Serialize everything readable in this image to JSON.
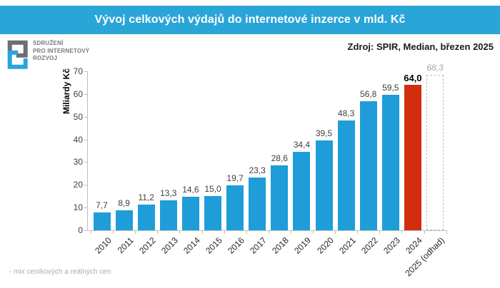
{
  "header": {
    "title": "Vývoj celkových výdajů do internetové inzerce v mld. Kč"
  },
  "logo": {
    "lines": [
      "SDRUŽENÍ",
      "PRO INTERNETOVÝ",
      "ROZVOJ"
    ]
  },
  "source_note": "Zdroj: SPIR, Median, březen 2025",
  "footnote": "- mix ceníkových a reálných cen",
  "colors": {
    "header_bg": "#2AA5D8",
    "bar": "#1E9DD8",
    "highlight": "#D22D0E",
    "estimate_border": "#BFBFBF",
    "axis": "#BFBFBF",
    "value_label": "#404040",
    "estimate_label": "#A6A6A6",
    "logo_gray": "#6D6E71",
    "logo_blue": "#29A5DC"
  },
  "chart_data": {
    "type": "bar",
    "title": "Vývoj celkových výdajů do internetové inzerce v mld. Kč",
    "xlabel": "",
    "ylabel": "Miliardy Kč",
    "ylim": [
      0,
      70
    ],
    "ytick_step": 10,
    "grid": false,
    "legend": "none",
    "categories": [
      "2010",
      "2011",
      "2012",
      "2013",
      "2014",
      "2015",
      "2016",
      "2017",
      "2018",
      "2019",
      "2020",
      "2021",
      "2022",
      "2023",
      "2024",
      "2025 (odhad)"
    ],
    "values": [
      7.7,
      8.9,
      11.2,
      13.3,
      14.6,
      15.0,
      19.7,
      23.3,
      28.6,
      34.4,
      39.5,
      48.3,
      56.8,
      59.5,
      64.0,
      68.3
    ],
    "value_labels": [
      "7,7",
      "8,9",
      "11,2",
      "13,3",
      "14,6",
      "15,0",
      "19,7",
      "23,3",
      "28,6",
      "34,4",
      "39,5",
      "48,3",
      "56,8",
      "59,5",
      "64,0",
      "68,3"
    ],
    "highlight_index": 14,
    "estimate_index": 15
  }
}
